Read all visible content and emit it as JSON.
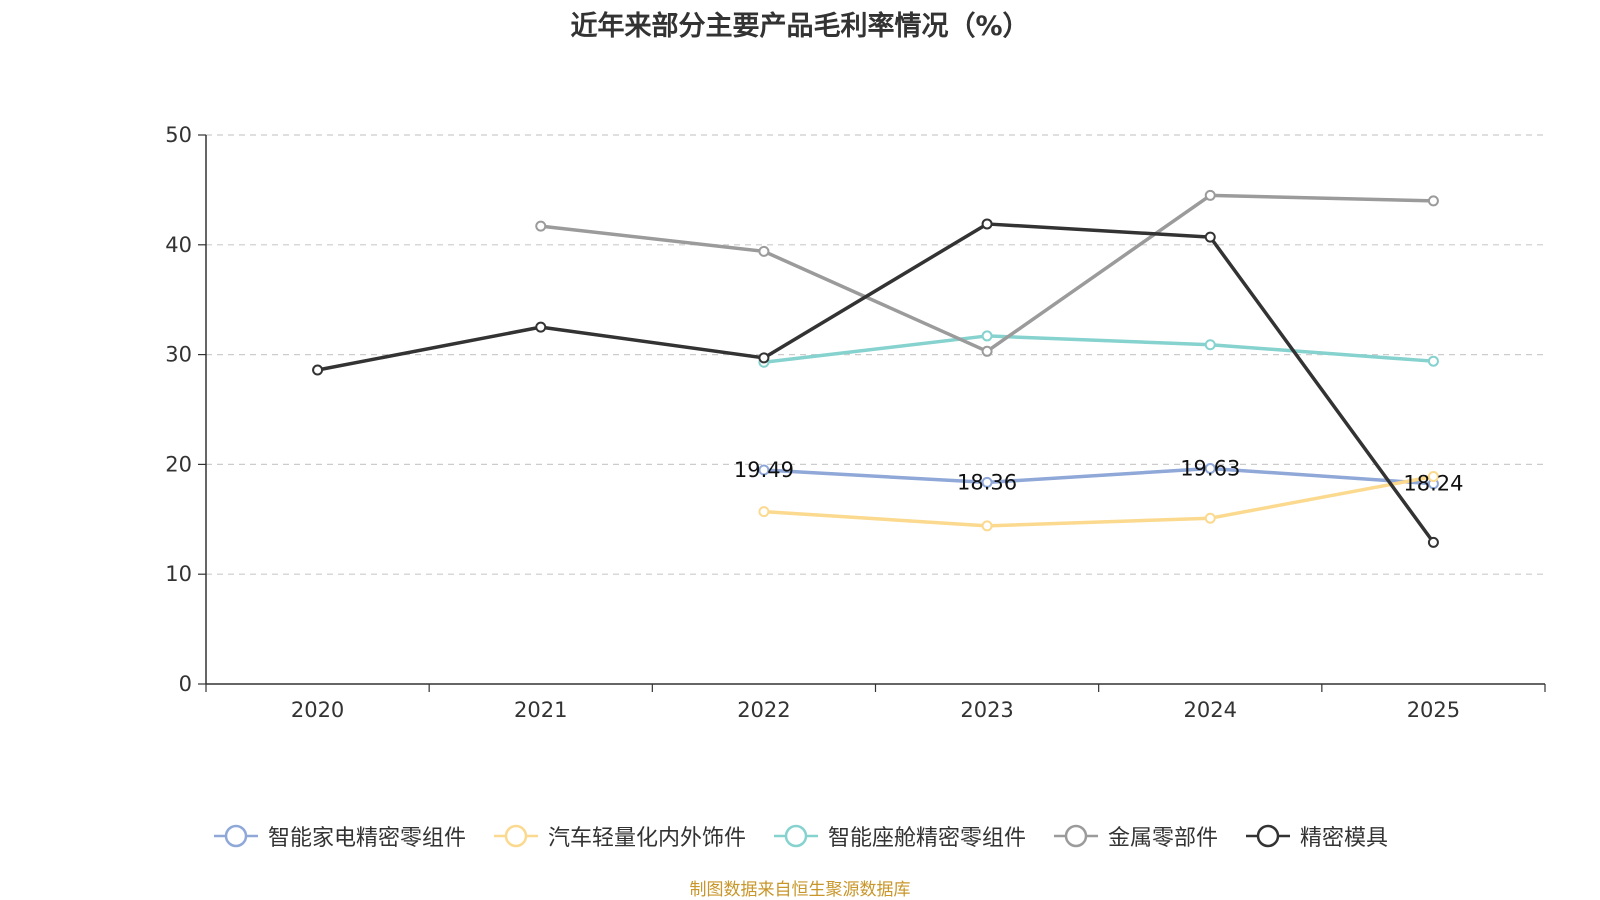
{
  "chart_data": {
    "type": "line",
    "title": "近年来部分主要产品毛利率情况（%）",
    "xlabel": "",
    "ylabel": "",
    "categories": [
      "2020",
      "2021",
      "2022",
      "2023",
      "2024",
      "2025"
    ],
    "ylim": [
      0,
      50
    ],
    "yticks": [
      0,
      10,
      20,
      30,
      40,
      50
    ],
    "grid": true,
    "legend_position": "bottom",
    "series": [
      {
        "name": "智能家电精密零组件",
        "color": "#8fa8d8",
        "values": [
          null,
          null,
          19.49,
          18.36,
          19.63,
          18.24
        ],
        "labels": [
          "",
          "",
          "19.49",
          "18.36",
          "19.63",
          "18.24"
        ]
      },
      {
        "name": "汽车轻量化内外饰件",
        "color": "#fbd98e",
        "values": [
          null,
          null,
          15.7,
          14.4,
          15.1,
          18.9
        ],
        "labels": [
          "",
          "",
          "",
          "",
          "",
          ""
        ]
      },
      {
        "name": "智能座舱精密零组件",
        "color": "#85d2cf",
        "values": [
          null,
          null,
          29.3,
          31.7,
          30.9,
          29.4
        ],
        "labels": [
          "",
          "",
          "",
          "",
          "",
          ""
        ]
      },
      {
        "name": "金属零部件",
        "color": "#9b9b9b",
        "values": [
          null,
          41.7,
          39.4,
          30.3,
          44.5,
          44.0
        ],
        "labels": [
          "",
          "",
          "",
          "",
          "",
          ""
        ]
      },
      {
        "name": "精密模具",
        "color": "#333333",
        "values": [
          28.6,
          32.5,
          29.7,
          41.9,
          40.7,
          12.9
        ],
        "labels": [
          "",
          "",
          "",
          "",
          "",
          ""
        ]
      }
    ],
    "source": "制图数据来自恒生聚源数据库"
  }
}
